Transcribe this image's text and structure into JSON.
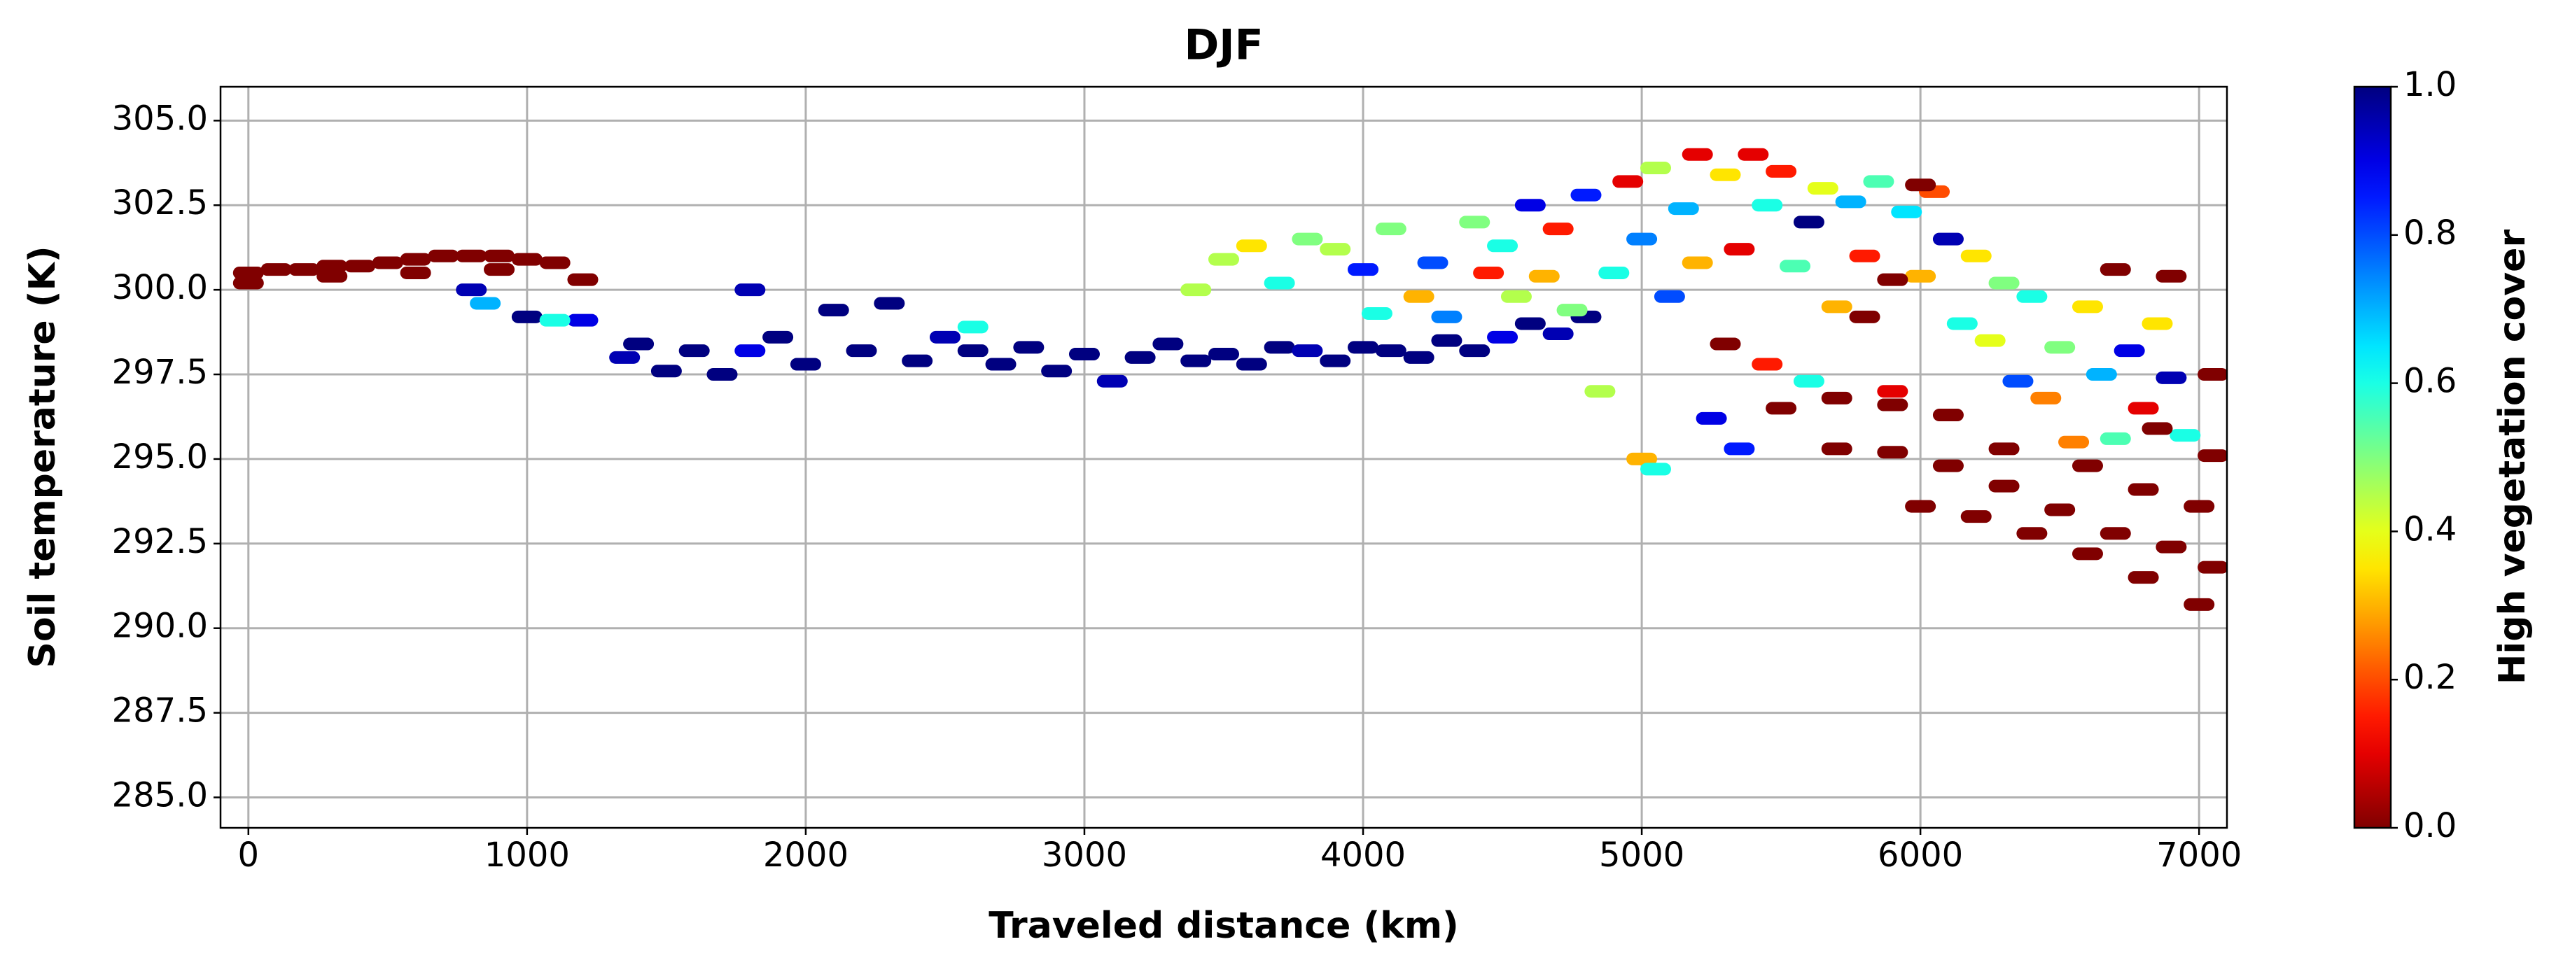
{
  "chart_data": {
    "type": "scatter",
    "title": "DJF",
    "x_label": "Traveled distance (km)",
    "y_label": "Soil temperature (K)",
    "colorbar_label": "High vegetation cover",
    "colormap": "jet_r",
    "clim": [
      0,
      1
    ],
    "colorbar_ticks": [
      {
        "value": 0,
        "label": "0.0"
      },
      {
        "value": 0.2,
        "label": "0.2"
      },
      {
        "value": 0.4,
        "label": "0.4"
      },
      {
        "value": 0.6,
        "label": "0.6"
      },
      {
        "value": 0.8,
        "label": "0.8"
      },
      {
        "value": 1,
        "label": "1.0"
      }
    ],
    "xlim": [
      -100,
      7100
    ],
    "xticks": [
      0,
      1000,
      2000,
      3000,
      4000,
      5000,
      6000,
      7000
    ],
    "ylim": [
      284.1,
      306
    ],
    "yticks": [
      {
        "value": 285,
        "label": "285.0"
      },
      {
        "value": 287.5,
        "label": "287.5"
      },
      {
        "value": 290,
        "label": "290.0"
      },
      {
        "value": 292.5,
        "label": "292.5"
      },
      {
        "value": 295,
        "label": "295.0"
      },
      {
        "value": 297.5,
        "label": "297.5"
      },
      {
        "value": 300,
        "label": "300.0"
      },
      {
        "value": 302.5,
        "label": "302.5"
      },
      {
        "value": 305,
        "label": "305.0"
      }
    ],
    "grid": true,
    "x": [
      0,
      100,
      200,
      300,
      400,
      500,
      600,
      700,
      800,
      900,
      1000,
      1100,
      1200,
      0,
      300,
      600,
      900,
      1000,
      800,
      1200,
      1350,
      1400,
      1500,
      1600,
      1700,
      1800,
      1800,
      1900,
      2000,
      2100,
      2200,
      2300,
      2400,
      2500,
      2600,
      2700,
      2800,
      2900,
      3000,
      3100,
      3200,
      3300,
      3400,
      3500,
      3600,
      3700,
      3800,
      3900,
      4000,
      4100,
      4200,
      4300,
      4400,
      4500,
      4600,
      4700,
      4800,
      850,
      1100,
      2600,
      3400,
      3500,
      3600,
      3700,
      3800,
      3900,
      4000,
      4050,
      4100,
      4200,
      4250,
      4300,
      4400,
      4450,
      4500,
      4550,
      4600,
      4650,
      4700,
      4750,
      4800,
      4850,
      4900,
      4950,
      5000,
      5000,
      5050,
      5050,
      5100,
      5150,
      5200,
      5200,
      5250,
      5300,
      5300,
      5350,
      5350,
      5400,
      5450,
      5450,
      5500,
      5550,
      5600,
      5600,
      5650,
      5700,
      5750,
      5800,
      5850,
      5900,
      5950,
      6000,
      6050,
      6100,
      6150,
      6200,
      6250,
      6300,
      6350,
      6400,
      6450,
      6500,
      6550,
      6600,
      6650,
      6700,
      6750,
      6800,
      6850,
      6900,
      6950,
      5500,
      5700,
      5900,
      5700,
      5900,
      6100,
      6100,
      6300,
      6000,
      6200,
      6400,
      6600,
      6800,
      7000,
      6300,
      6500,
      6700,
      6900,
      7050,
      6600,
      6800,
      7000,
      6850,
      7050,
      7050,
      6900,
      6700,
      5800,
      5900,
      6000
    ],
    "values": [
      300.5,
      300.6,
      300.6,
      300.7,
      300.7,
      300.8,
      300.9,
      301,
      301,
      301,
      300.9,
      300.8,
      300.3,
      300.2,
      300.4,
      300.5,
      300.6,
      299.2,
      300,
      299.1,
      298,
      298.4,
      297.6,
      298.2,
      297.5,
      300,
      298.2,
      298.6,
      297.8,
      299.4,
      298.2,
      299.6,
      297.9,
      298.6,
      298.2,
      297.8,
      298.3,
      297.6,
      298.1,
      297.3,
      298,
      298.4,
      297.9,
      298.1,
      297.8,
      298.3,
      298.2,
      297.9,
      298.3,
      298.2,
      298,
      298.5,
      298.2,
      298.6,
      299,
      298.7,
      299.2,
      299.6,
      299.1,
      298.9,
      300,
      300.9,
      301.3,
      300.2,
      301.5,
      301.2,
      300.6,
      299.3,
      301.8,
      299.8,
      300.8,
      299.2,
      302,
      300.5,
      301.3,
      299.8,
      302.5,
      300.4,
      301.8,
      299.4,
      302.8,
      297,
      300.5,
      303.2,
      301.5,
      295,
      303.6,
      294.7,
      299.8,
      302.4,
      304,
      300.8,
      296.2,
      303.4,
      298.4,
      301.2,
      295.3,
      304,
      302.5,
      297.8,
      303.5,
      300.7,
      302,
      297.3,
      303,
      299.5,
      302.6,
      301,
      303.2,
      297,
      302.3,
      300.4,
      302.9,
      301.5,
      299,
      301,
      298.5,
      300.2,
      297.3,
      299.8,
      296.8,
      298.3,
      295.5,
      299.5,
      297.5,
      295.6,
      298.2,
      296.5,
      299,
      297.4,
      295.7,
      296.5,
      296.8,
      296.6,
      295.3,
      295.2,
      294.8,
      296.3,
      295.3,
      293.6,
      293.3,
      292.8,
      292.2,
      291.5,
      290.7,
      294.2,
      293.5,
      292.8,
      292.4,
      291.8,
      294.8,
      294.1,
      293.6,
      295.9,
      295.1,
      297.5,
      300.4,
      300.6,
      299.2,
      300.3,
      303.1
    ],
    "color_values": [
      0,
      0,
      0,
      0,
      0,
      0,
      0,
      0,
      0,
      0,
      0,
      0,
      0,
      0,
      0,
      0,
      0,
      1,
      0.95,
      0.9,
      0.95,
      1,
      1,
      1,
      1,
      0.95,
      0.9,
      1,
      1,
      1,
      1,
      1,
      1,
      0.95,
      1,
      1,
      1,
      1,
      1,
      0.95,
      1,
      1,
      1,
      1,
      1,
      1,
      0.95,
      1,
      1,
      1,
      1,
      1,
      1,
      0.9,
      1,
      0.95,
      1,
      0.7,
      0.6,
      0.6,
      0.45,
      0.45,
      0.35,
      0.6,
      0.5,
      0.45,
      0.85,
      0.6,
      0.5,
      0.3,
      0.8,
      0.75,
      0.5,
      0.15,
      0.6,
      0.45,
      0.9,
      0.3,
      0.15,
      0.5,
      0.85,
      0.45,
      0.6,
      0.1,
      0.75,
      0.3,
      0.45,
      0.6,
      0.8,
      0.7,
      0.1,
      0.3,
      0.9,
      0.35,
      0,
      0.1,
      0.85,
      0.1,
      0.6,
      0.15,
      0.15,
      0.55,
      1,
      0.6,
      0.4,
      0.3,
      0.7,
      0.15,
      0.55,
      0.1,
      0.65,
      0.3,
      0.2,
      0.95,
      0.6,
      0.35,
      0.4,
      0.5,
      0.8,
      0.6,
      0.25,
      0.5,
      0.25,
      0.35,
      0.7,
      0.55,
      0.9,
      0.1,
      0.35,
      0.95,
      0.6,
      0,
      0,
      0,
      0,
      0,
      0,
      0,
      0,
      0,
      0,
      0,
      0,
      0,
      0,
      0,
      0,
      0,
      0,
      0,
      0,
      0,
      0,
      0,
      0,
      0,
      0,
      0,
      0,
      0,
      0
    ]
  }
}
